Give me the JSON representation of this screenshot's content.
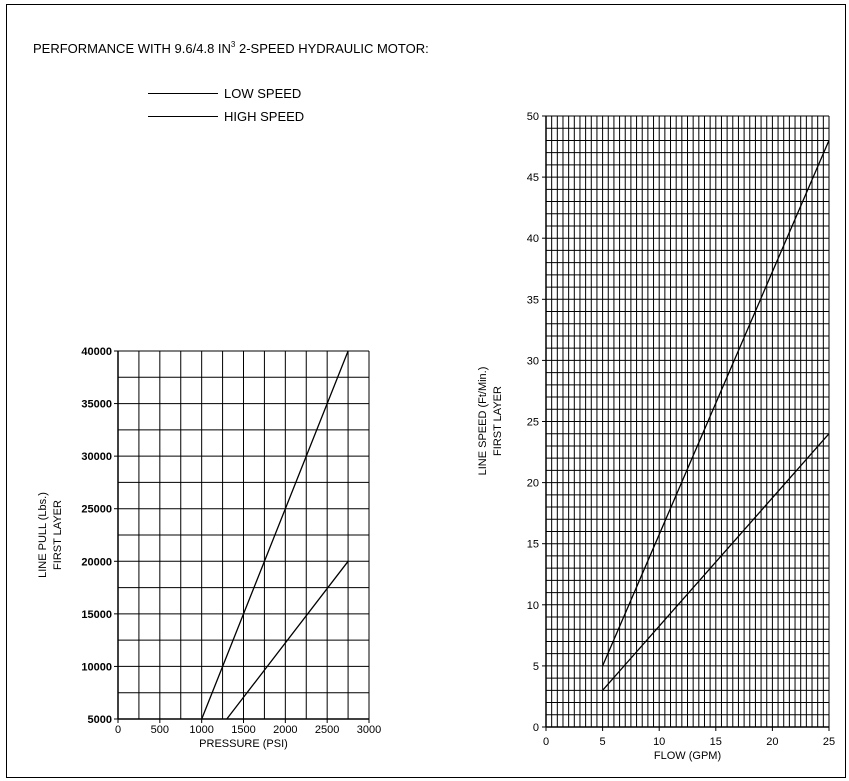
{
  "header": {
    "title_before": "PERFORMANCE WITH 9.6/4.8 IN",
    "title_sup": "3",
    "title_after": " 2-SPEED HYDRAULIC MOTOR:"
  },
  "legend": {
    "low_speed": "LOW SPEED",
    "high_speed": "HIGH SPEED"
  },
  "chart_data": [
    {
      "type": "line",
      "xlabel": "PRESSURE (PSI)",
      "ylabel_line1": "LINE PULL (Lbs.)",
      "ylabel_line2": "FIRST LAYER",
      "xlim": [
        0,
        3000
      ],
      "ylim": [
        5000,
        40000
      ],
      "x_ticks": [
        "0",
        "500",
        "1000",
        "1500",
        "2000",
        "2500",
        "3000"
      ],
      "y_ticks": [
        "5000",
        "10000",
        "15000",
        "20000",
        "25000",
        "30000",
        "35000",
        "40000"
      ],
      "grid": true,
      "series": [
        {
          "name": "LOW SPEED",
          "points": [
            [
              1000,
              5000
            ],
            [
              2750,
              40000
            ]
          ]
        },
        {
          "name": "HIGH SPEED",
          "points": [
            [
              1300,
              5000
            ],
            [
              2750,
              20000
            ]
          ]
        }
      ]
    },
    {
      "type": "line",
      "xlabel": "FLOW (GPM)",
      "ylabel_line1": "LINE SPEED (Ft/Min.)",
      "ylabel_line2": "FIRST LAYER",
      "xlim": [
        0,
        25
      ],
      "ylim": [
        0,
        50
      ],
      "x_ticks": [
        "0",
        "5",
        "10",
        "15",
        "20",
        "25"
      ],
      "y_ticks": [
        "0",
        "5",
        "10",
        "15",
        "20",
        "25",
        "30",
        "35",
        "40",
        "45",
        "50"
      ],
      "grid": true,
      "series": [
        {
          "name": "HIGH SPEED",
          "points": [
            [
              5,
              5
            ],
            [
              25,
              48
            ]
          ]
        },
        {
          "name": "LOW SPEED",
          "points": [
            [
              5,
              3
            ],
            [
              25,
              24
            ]
          ]
        }
      ]
    }
  ]
}
